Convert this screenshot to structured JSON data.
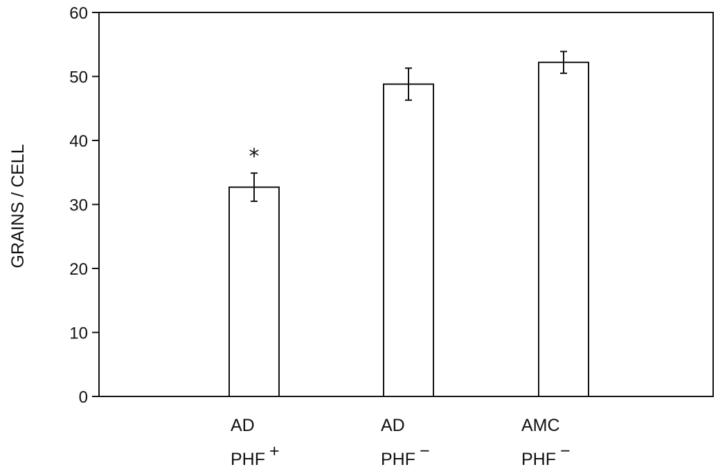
{
  "chart_data": {
    "type": "bar",
    "categories": [
      {
        "line1": "AD",
        "line2": "PHF",
        "superscript": "+"
      },
      {
        "line1": "AD",
        "line2": "PHF",
        "superscript": "−"
      },
      {
        "line1": "AMC",
        "line2": "PHF",
        "superscript": "−"
      }
    ],
    "values": [
      32.7,
      48.8,
      52.2
    ],
    "errors": [
      2.2,
      2.5,
      1.7
    ],
    "annotations": [
      "*",
      "",
      ""
    ],
    "ylabel": "GRAINS / CELL",
    "xlabel": "",
    "title": "",
    "ylim": [
      0,
      60
    ],
    "yticks": [
      0,
      10,
      20,
      30,
      40,
      50,
      60
    ],
    "grid": false,
    "bar_fill": "#ffffff",
    "line_color": "#111111"
  }
}
